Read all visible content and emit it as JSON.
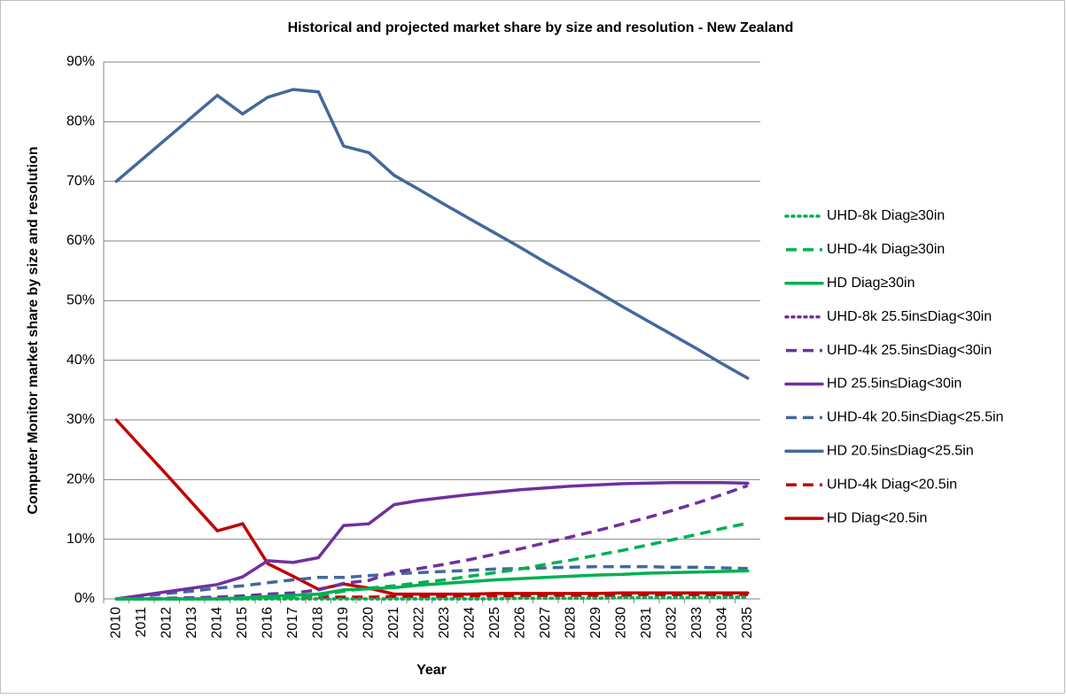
{
  "chart_data": {
    "type": "line",
    "title": "Historical and projected market share by size and resolution - New Zealand",
    "x_label": "Year",
    "y_label": "Computer Monitor market share by size and resolution",
    "categories": [
      "2010",
      "2011",
      "2012",
      "2013",
      "2014",
      "2015",
      "2016",
      "2017",
      "2018",
      "2019",
      "2020",
      "2021",
      "2022",
      "2023",
      "2024",
      "2025",
      "2026",
      "2027",
      "2028",
      "2029",
      "2030",
      "2031",
      "2032",
      "2033",
      "2034",
      "2035"
    ],
    "ylim": [
      0,
      90
    ],
    "yticks": [
      {
        "value": 0,
        "label": "0%"
      },
      {
        "value": 10,
        "label": "10%"
      },
      {
        "value": 20,
        "label": "20%"
      },
      {
        "value": 30,
        "label": "30%"
      },
      {
        "value": 40,
        "label": "40%"
      },
      {
        "value": 50,
        "label": "50%"
      },
      {
        "value": 60,
        "label": "60%"
      },
      {
        "value": 70,
        "label": "70%"
      },
      {
        "value": 80,
        "label": "80%"
      },
      {
        "value": 90,
        "label": "90%"
      }
    ],
    "grid": true,
    "legend_position": "right",
    "series": [
      {
        "name": "UHD-8k Diag≥30in",
        "color": "#00b050",
        "line_style": "dot",
        "values": [
          0,
          0,
          0,
          0,
          0,
          0,
          0,
          0,
          0,
          0,
          0,
          0,
          0,
          0,
          0,
          0,
          0.1,
          0.1,
          0.1,
          0.1,
          0.2,
          0.2,
          0.2,
          0.2,
          0.3,
          0.3
        ]
      },
      {
        "name": "UHD-4k Diag≥30in",
        "color": "#00b050",
        "line_style": "dash",
        "values": [
          0,
          0,
          0,
          0,
          0,
          0,
          0.1,
          0.2,
          0.5,
          1.3,
          1.8,
          2.2,
          2.7,
          3.2,
          3.8,
          4.4,
          5.0,
          5.8,
          6.5,
          7.3,
          8.1,
          9.0,
          9.9,
          10.8,
          11.8,
          12.7
        ]
      },
      {
        "name": "HD Diag≥30in",
        "color": "#00b050",
        "line_style": "solid",
        "values": [
          0,
          0,
          0,
          0,
          0,
          0.2,
          0.4,
          0.6,
          0.8,
          1.5,
          1.7,
          1.9,
          2.3,
          2.6,
          2.9,
          3.2,
          3.4,
          3.6,
          3.8,
          4.0,
          4.1,
          4.3,
          4.4,
          4.5,
          4.6,
          4.7
        ]
      },
      {
        "name": "UHD-8k 25.5in≤Diag<30in",
        "color": "#7030a0",
        "line_style": "dot",
        "values": [
          0,
          0,
          0,
          0,
          0,
          0,
          0,
          0,
          0,
          0,
          0,
          0,
          0,
          0,
          0,
          0,
          0.1,
          0.1,
          0.1,
          0.1,
          0.2,
          0.2,
          0.2,
          0.2,
          0.3,
          0.3
        ]
      },
      {
        "name": "UHD-4k 25.5in≤Diag<30in",
        "color": "#7030a0",
        "line_style": "dash",
        "values": [
          0,
          0,
          0.1,
          0.2,
          0.3,
          0.5,
          0.8,
          1.0,
          1.5,
          2.6,
          3.1,
          4.5,
          5.1,
          5.8,
          6.6,
          7.5,
          8.4,
          9.4,
          10.4,
          11.4,
          12.5,
          13.6,
          14.8,
          16.1,
          17.5,
          19.0
        ]
      },
      {
        "name": "HD 25.5in≤Diag<30in",
        "color": "#7030a0",
        "line_style": "solid",
        "values": [
          0,
          0.6,
          1.2,
          1.8,
          2.4,
          3.7,
          6.4,
          6.1,
          6.9,
          12.3,
          12.6,
          15.8,
          16.5,
          17.0,
          17.5,
          17.9,
          18.3,
          18.6,
          18.9,
          19.1,
          19.3,
          19.4,
          19.5,
          19.5,
          19.5,
          19.4
        ]
      },
      {
        "name": "UHD-4k 20.5in≤Diag<25.5in",
        "color": "#41699c",
        "line_style": "dash",
        "values": [
          0,
          0.4,
          0.9,
          1.3,
          1.8,
          2.2,
          2.7,
          3.2,
          3.6,
          3.6,
          3.9,
          4.2,
          4.4,
          4.6,
          4.8,
          5.0,
          5.1,
          5.2,
          5.3,
          5.4,
          5.4,
          5.4,
          5.3,
          5.3,
          5.2,
          5.1
        ]
      },
      {
        "name": "HD 20.5in≤Diag<25.5in",
        "color": "#41699c",
        "line_style": "solid",
        "values": [
          70,
          73.6,
          77.2,
          80.8,
          84.4,
          81.3,
          84.1,
          85.4,
          85.0,
          75.9,
          74.8,
          71.0,
          68.6,
          66.1,
          63.7,
          61.3,
          58.9,
          56.4,
          54.0,
          51.6,
          49.1,
          46.7,
          44.3,
          41.9,
          39.4,
          37.0
        ]
      },
      {
        "name": "UHD-4k Diag<20.5in",
        "color": "#c00000",
        "line_style": "dash",
        "values": [
          0,
          0,
          0,
          0,
          0.1,
          0.1,
          0.2,
          0.2,
          0.3,
          0.3,
          0.3,
          0.4,
          0.4,
          0.4,
          0.5,
          0.5,
          0.5,
          0.6,
          0.6,
          0.6,
          0.6,
          0.7,
          0.7,
          0.7,
          0.7,
          0.7
        ]
      },
      {
        "name": "HD Diag<20.5in",
        "color": "#c00000",
        "line_style": "solid",
        "values": [
          30,
          25.4,
          20.8,
          16.1,
          11.4,
          12.6,
          5.9,
          3.8,
          1.6,
          2.5,
          1.8,
          0.8,
          0.8,
          0.8,
          0.8,
          0.9,
          0.9,
          0.9,
          0.9,
          0.9,
          1.0,
          1.0,
          1.0,
          1.0,
          1.0,
          1.0
        ]
      }
    ]
  }
}
